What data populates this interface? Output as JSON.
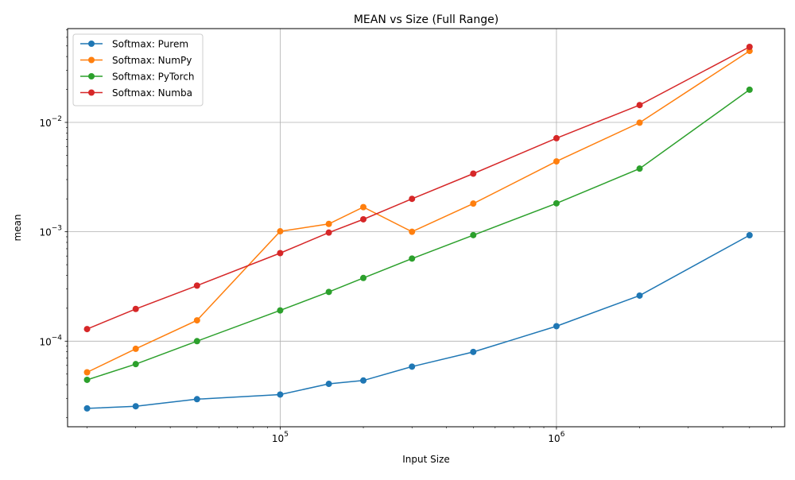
{
  "chart_data": {
    "type": "line",
    "title": "MEAN vs Size (Full Range)",
    "xlabel": "Input Size",
    "ylabel": "mean",
    "xscale": "log",
    "yscale": "log",
    "xlim": [
      17000,
      6700000
    ],
    "ylim": [
      1.65e-05,
      0.072
    ],
    "grid": true,
    "legend_position": "top-left",
    "x": [
      20000,
      30000,
      50000,
      100000,
      150000,
      200000,
      300000,
      500000,
      1000000,
      2000000,
      5000000
    ],
    "x_ticks": [
      {
        "value": 100000,
        "label": "10^5"
      },
      {
        "value": 1000000,
        "label": "10^6"
      }
    ],
    "y_ticks": [
      {
        "value": 0.0001,
        "label": "10^-4"
      },
      {
        "value": 0.001,
        "label": "10^-3"
      },
      {
        "value": 0.01,
        "label": "10^-2"
      }
    ],
    "series": [
      {
        "name": "Softmax: Purem",
        "color": "#1f77b4",
        "values": [
          2.43e-05,
          2.54e-05,
          2.95e-05,
          3.25e-05,
          4.07e-05,
          4.37e-05,
          5.85e-05,
          7.97e-05,
          0.000137,
          0.000261,
          0.00093
        ]
      },
      {
        "name": "Softmax: NumPy",
        "color": "#ff7f0e",
        "values": [
          5.19e-05,
          8.51e-05,
          0.000155,
          0.00101,
          0.00118,
          0.00168,
          0.001,
          0.00181,
          0.0044,
          0.00993,
          0.045
        ]
      },
      {
        "name": "Softmax: PyTorch",
        "color": "#2ca02c",
        "values": [
          4.43e-05,
          6.17e-05,
          0.0001,
          0.000191,
          0.000282,
          0.000378,
          0.000569,
          0.000932,
          0.00182,
          0.00378,
          0.0199
        ]
      },
      {
        "name": "Softmax: Numba",
        "color": "#d62728",
        "values": [
          0.000129,
          0.000197,
          0.000322,
          0.000638,
          0.000983,
          0.0013,
          0.002,
          0.0034,
          0.00717,
          0.0144,
          0.049
        ]
      }
    ]
  }
}
